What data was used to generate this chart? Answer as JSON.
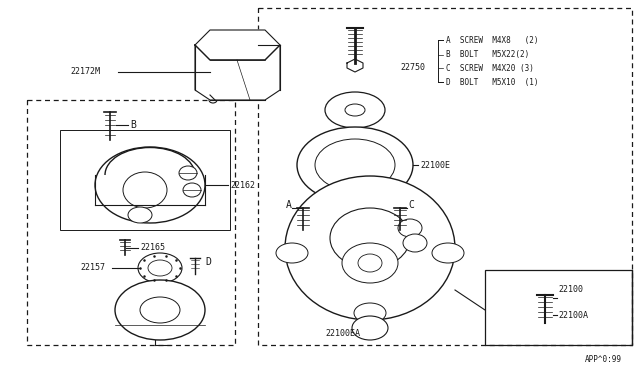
{
  "bg_color": "#ffffff",
  "line_color": "#1a1a1a",
  "page_ref": "APP^0:99",
  "fastener_lines": [
    "A  SCREW  M4X8   (2)",
    "B  BOLT   M5X22(2)",
    "C  SCREW  M4X20 (3)",
    "D  BOLT   M5X10  (1)"
  ],
  "layout": {
    "fig_w": 6.4,
    "fig_h": 3.72,
    "dpi": 100
  }
}
